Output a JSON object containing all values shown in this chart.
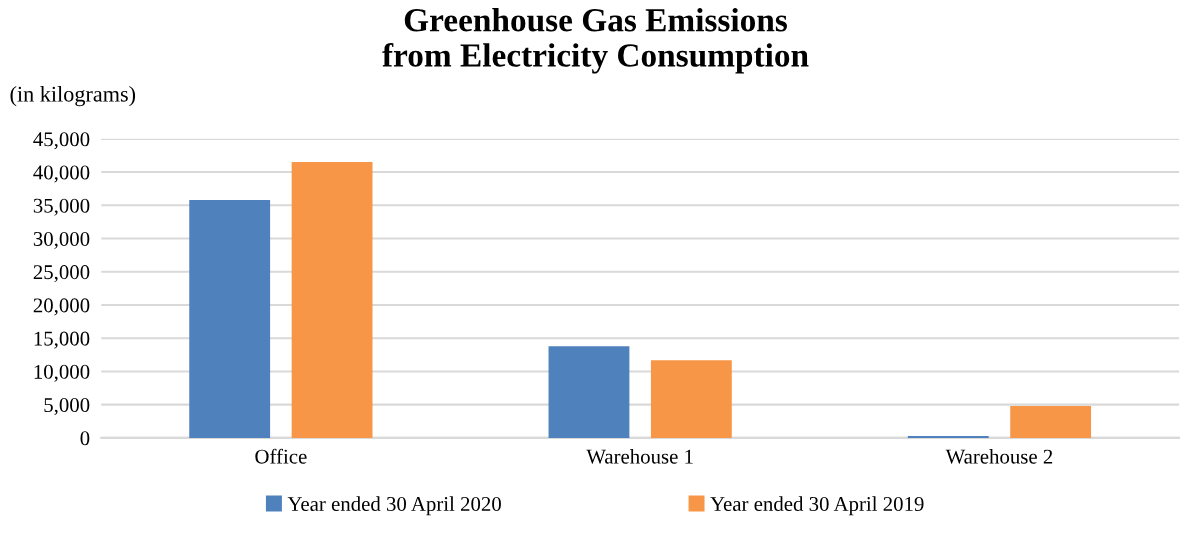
{
  "chart_data": {
    "type": "bar",
    "title": "Greenhouse Gas Emissions\nfrom Electricity Consumption",
    "ylabel": "(in kilograms)",
    "categories": [
      "Office",
      "Warehouse 1",
      "Warehouse 2"
    ],
    "series": [
      {
        "name": "Year ended 30 April 2020",
        "color": "#4f81bd",
        "values": [
          35800,
          13800,
          300
        ]
      },
      {
        "name": "Year ended 30 April 2019",
        "color": "#f79646",
        "values": [
          41500,
          11700,
          4800
        ]
      }
    ],
    "ylim": [
      0,
      45000
    ],
    "yticks": [
      {
        "value": 0,
        "label": "0"
      },
      {
        "value": 5000,
        "label": "5,000"
      },
      {
        "value": 10000,
        "label": "10,000"
      },
      {
        "value": 15000,
        "label": "15,000"
      },
      {
        "value": 20000,
        "label": "20,000"
      },
      {
        "value": 25000,
        "label": "25,000"
      },
      {
        "value": 30000,
        "label": "30,000"
      },
      {
        "value": 35000,
        "label": "35,000"
      },
      {
        "value": 40000,
        "label": "40,000"
      },
      {
        "value": 45000,
        "label": "45,000"
      }
    ],
    "grid": "y",
    "legend": "bottom"
  }
}
